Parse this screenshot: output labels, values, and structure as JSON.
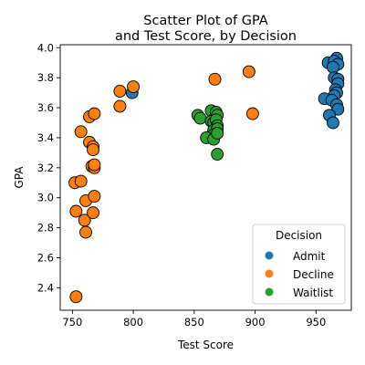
{
  "chart_data": {
    "type": "scatter",
    "title": "Scatter Plot of GPA\nand Test Score, by Decision",
    "xlabel": "Test Score",
    "ylabel": "GPA",
    "xlim": [
      740,
      979
    ],
    "ylim": [
      2.25,
      4.02
    ],
    "xticks": [
      750,
      800,
      850,
      900,
      950
    ],
    "yticks": [
      2.4,
      2.6,
      2.8,
      3.0,
      3.2,
      3.4,
      3.6,
      3.8,
      4.0
    ],
    "grid": false,
    "legend": {
      "title": "Decision",
      "placement": "lower-right"
    },
    "series": [
      {
        "name": "Admit",
        "color": "#1f77b4",
        "points": [
          [
            799,
            3.7
          ],
          [
            960,
            3.9
          ],
          [
            967,
            3.93
          ],
          [
            965,
            3.91
          ],
          [
            968,
            3.89
          ],
          [
            964,
            3.87
          ],
          [
            965,
            3.8
          ],
          [
            968,
            3.79
          ],
          [
            968,
            3.76
          ],
          [
            966,
            3.72
          ],
          [
            967,
            3.7
          ],
          [
            965,
            3.68
          ],
          [
            957,
            3.66
          ],
          [
            963,
            3.65
          ],
          [
            967,
            3.62
          ],
          [
            968,
            3.59
          ],
          [
            961,
            3.55
          ],
          [
            964,
            3.5
          ]
        ]
      },
      {
        "name": "Decline",
        "color": "#ff7f0e",
        "points": [
          [
            753,
            2.34
          ],
          [
            752,
            3.1
          ],
          [
            757,
            3.11
          ],
          [
            753,
            2.91
          ],
          [
            760,
            2.85
          ],
          [
            761,
            2.77
          ],
          [
            761,
            2.98
          ],
          [
            767,
            2.9
          ],
          [
            768,
            3.01
          ],
          [
            764,
            3.37
          ],
          [
            767,
            3.34
          ],
          [
            767,
            3.32
          ],
          [
            766,
            3.21
          ],
          [
            768,
            3.2
          ],
          [
            768,
            3.22
          ],
          [
            757,
            3.44
          ],
          [
            764,
            3.54
          ],
          [
            768,
            3.56
          ],
          [
            789,
            3.71
          ],
          [
            789,
            3.61
          ],
          [
            800,
            3.74
          ],
          [
            867,
            3.79
          ],
          [
            895,
            3.84
          ],
          [
            898,
            3.56
          ]
        ]
      },
      {
        "name": "Waitlist",
        "color": "#2ca02c",
        "points": [
          [
            853,
            3.55
          ],
          [
            855,
            3.53
          ],
          [
            864,
            3.58
          ],
          [
            868,
            3.57
          ],
          [
            869,
            3.55
          ],
          [
            864,
            3.51
          ],
          [
            866,
            3.5
          ],
          [
            868,
            3.52
          ],
          [
            869,
            3.48
          ],
          [
            866,
            3.45
          ],
          [
            869,
            3.46
          ],
          [
            866,
            3.42
          ],
          [
            860,
            3.4
          ],
          [
            866,
            3.39
          ],
          [
            869,
            3.43
          ],
          [
            869,
            3.29
          ]
        ]
      }
    ]
  }
}
